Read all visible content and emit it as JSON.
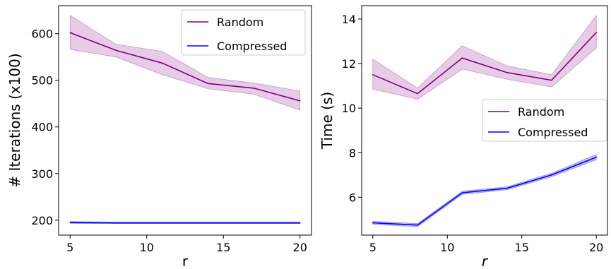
{
  "chart_data": [
    {
      "type": "line",
      "x": [
        5,
        8,
        11,
        14,
        17,
        20
      ],
      "xlabel": "r",
      "ylabel": "# Iterations (x100)",
      "xlim": [
        4.25,
        20.75
      ],
      "ylim": [
        168,
        660
      ],
      "xticks": [
        5,
        10,
        15,
        20
      ],
      "yticks": [
        200,
        300,
        400,
        500,
        600
      ],
      "legend": "top-right",
      "grid": false,
      "series": [
        {
          "name": "Random",
          "color": "#800080",
          "values": [
            602,
            564,
            537,
            493,
            483,
            456
          ],
          "lower": [
            566,
            550,
            512,
            482,
            470,
            436
          ],
          "upper": [
            639,
            577,
            562,
            506,
            494,
            477
          ]
        },
        {
          "name": "Compressed",
          "color": "#0000ff",
          "values": [
            195,
            194,
            194,
            194,
            194,
            194
          ],
          "lower": [
            193,
            193,
            193,
            193,
            193,
            193
          ],
          "upper": [
            197,
            196,
            196,
            196,
            196,
            196
          ]
        }
      ]
    },
    {
      "type": "line",
      "x": [
        5,
        8,
        11,
        14,
        17,
        20
      ],
      "xlabel": "r",
      "ylabel": "Time (s)",
      "xlim": [
        4.25,
        20.75
      ],
      "ylim": [
        4.3,
        14.6
      ],
      "xticks": [
        5,
        10,
        15,
        20
      ],
      "yticks": [
        6,
        8,
        10,
        12,
        14
      ],
      "legend": "center-right",
      "grid": false,
      "series": [
        {
          "name": "Random",
          "color": "#800080",
          "values": [
            11.5,
            10.65,
            12.25,
            11.6,
            11.25,
            13.4
          ],
          "lower": [
            10.85,
            10.4,
            11.75,
            11.3,
            10.95,
            12.7
          ],
          "upper": [
            12.2,
            10.9,
            12.8,
            11.9,
            11.5,
            14.15
          ]
        },
        {
          "name": "Compressed",
          "color": "#0000ff",
          "values": [
            4.85,
            4.75,
            6.2,
            6.4,
            7.0,
            7.8
          ],
          "lower": [
            4.78,
            4.68,
            6.13,
            6.33,
            6.92,
            7.68
          ],
          "upper": [
            4.92,
            4.82,
            6.27,
            6.47,
            7.08,
            7.92
          ]
        }
      ]
    }
  ]
}
